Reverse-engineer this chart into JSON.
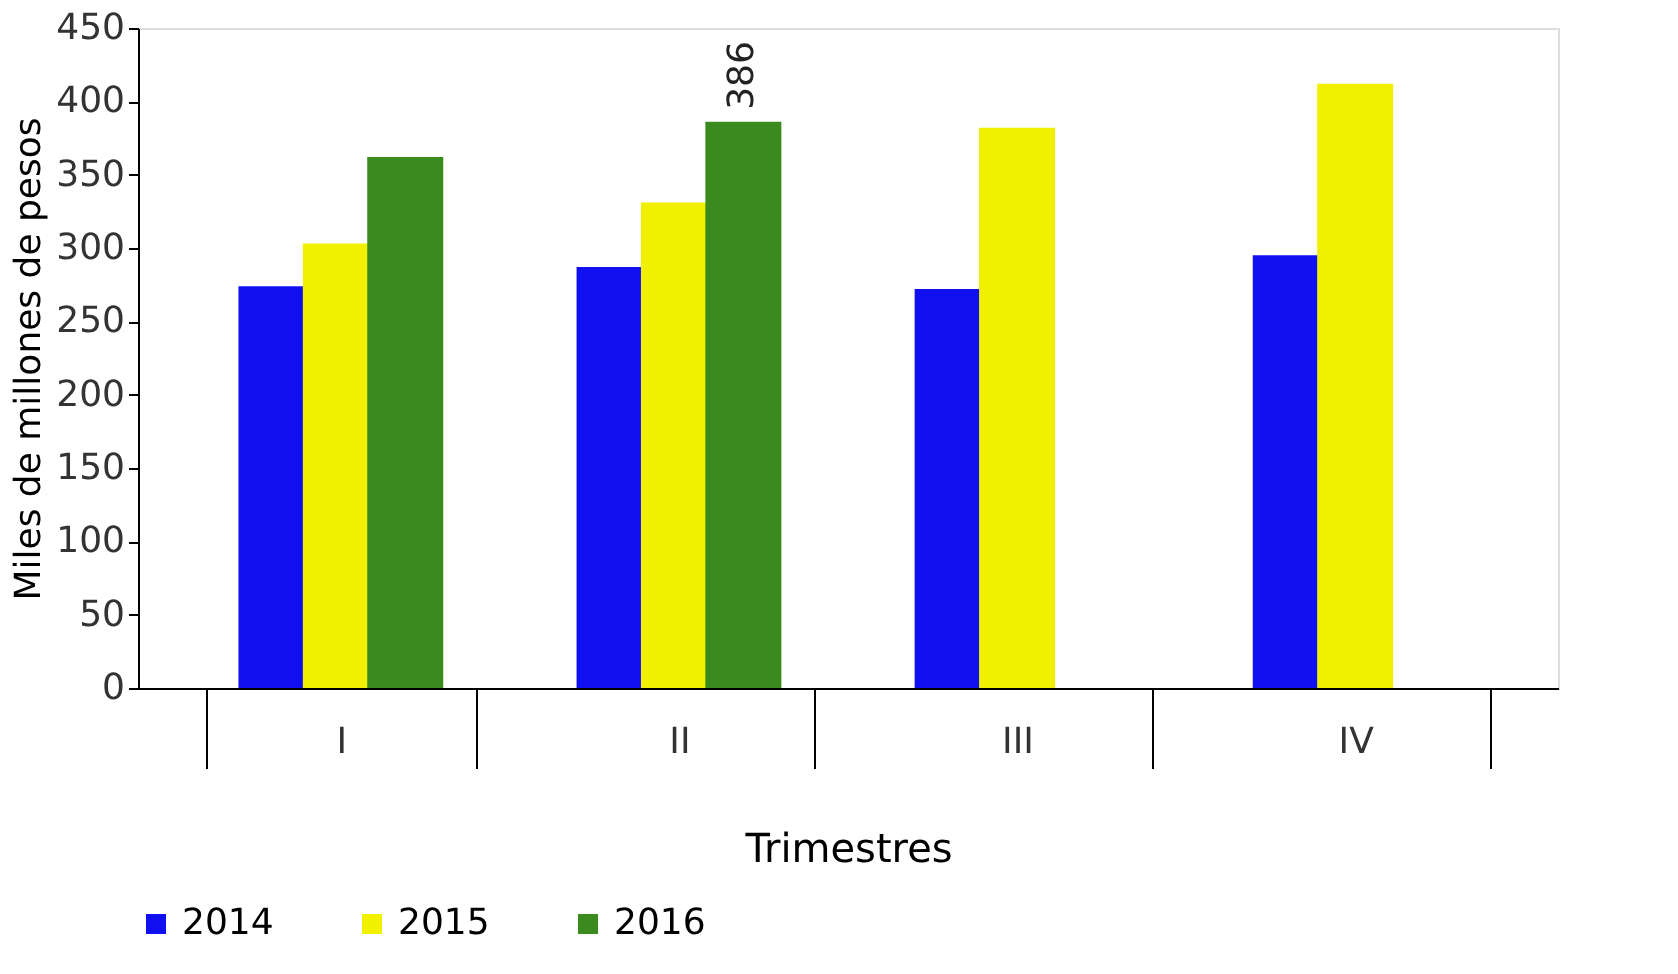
{
  "chart_data": {
    "type": "bar",
    "xlabel": "Trimestres",
    "ylabel": "Miles de millones de pesos",
    "categories": [
      "I",
      "II",
      "III",
      "IV"
    ],
    "series": [
      {
        "name": "2014",
        "color": "#1010f0",
        "values": [
          274,
          287,
          272,
          295
        ]
      },
      {
        "name": "2015",
        "color": "#f0f000",
        "values": [
          303,
          331,
          382,
          412
        ]
      },
      {
        "name": "2016",
        "color": "#3a8a1e",
        "values": [
          362,
          386,
          null,
          null
        ],
        "value_labels": [
          null,
          "386",
          null,
          null
        ]
      }
    ],
    "ylim": [
      0,
      450
    ],
    "yticks": [
      0,
      50,
      100,
      150,
      200,
      250,
      300,
      350,
      400,
      450
    ],
    "grid": false,
    "legend": "bottom"
  }
}
